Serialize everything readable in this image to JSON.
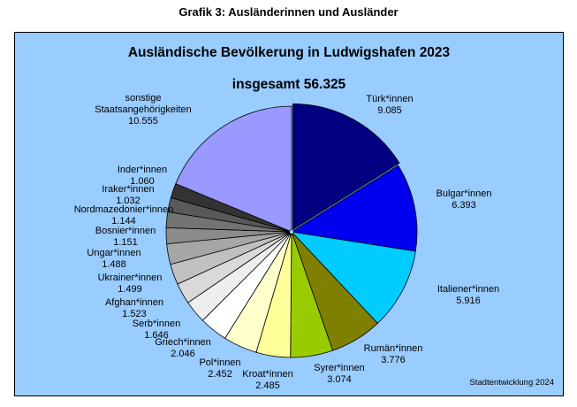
{
  "page_heading": "Grafik 3: Ausländerinnen und Ausländer",
  "credit": "Stadtentwicklung 2024",
  "chart_data": {
    "type": "pie",
    "title": "Ausländische Bevölkerung in Ludwigshafen 2023",
    "subtitle": "insgesamt 56.325",
    "total": 56325,
    "slices": [
      {
        "label": "Türk*innen",
        "value": 9085,
        "value_text": "9.085",
        "color": "#000080"
      },
      {
        "label": "Bulgar*innen",
        "value": 6393,
        "value_text": "6.393",
        "color": "#0000ee"
      },
      {
        "label": "Italiener*innen",
        "value": 5916,
        "value_text": "5.916",
        "color": "#00ccff"
      },
      {
        "label": "Rumän*innen",
        "value": 3776,
        "value_text": "3.776",
        "color": "#7f7f00"
      },
      {
        "label": "Syrer*innen",
        "value": 3074,
        "value_text": "3.074",
        "color": "#99cc00"
      },
      {
        "label": "Kroat*innen",
        "value": 2485,
        "value_text": "2.485",
        "color": "#ffff99"
      },
      {
        "label": "Pol*innen",
        "value": 2452,
        "value_text": "2.452",
        "color": "#ffffcc"
      },
      {
        "label": "Griech*innen",
        "value": 2046,
        "value_text": "2.046",
        "color": "#ffffff"
      },
      {
        "label": "Serb*innen",
        "value": 1646,
        "value_text": "1.646",
        "color": "#eeeeee"
      },
      {
        "label": "Afghan*innen",
        "value": 1523,
        "value_text": "1.523",
        "color": "#d9d9d9"
      },
      {
        "label": "Ukrainer*innen",
        "value": 1499,
        "value_text": "1.499",
        "color": "#c0c0c0"
      },
      {
        "label": "Ungar*innen",
        "value": 1488,
        "value_text": "1.488",
        "color": "#a6a6a6"
      },
      {
        "label": "Bosnier*innen",
        "value": 1151,
        "value_text": "1.151",
        "color": "#8c8c8c"
      },
      {
        "label": "Nordmazedonier*innen",
        "value": 1144,
        "value_text": "1.144",
        "color": "#737373"
      },
      {
        "label": "Iraker*innen",
        "value": 1032,
        "value_text": "1.032",
        "color": "#595959"
      },
      {
        "label": "Inder*innen",
        "value": 1060,
        "value_text": "1.060",
        "color": "#333333"
      },
      {
        "label": "sonstige Staatsangehörigkeiten",
        "value": 10555,
        "value_text": "10.555",
        "color": "#9999ff"
      }
    ]
  }
}
